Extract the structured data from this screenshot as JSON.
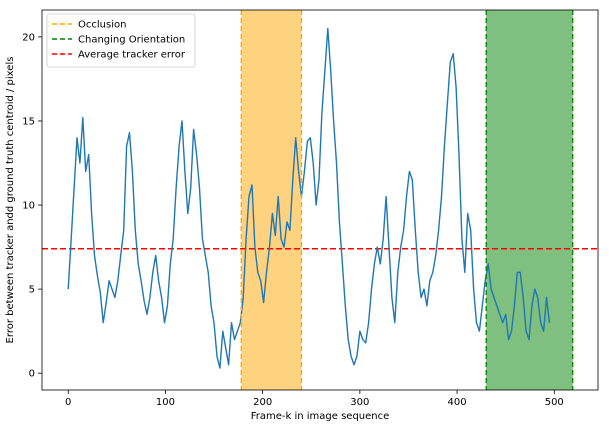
{
  "chart_data": {
    "type": "line",
    "title": "",
    "xlabel": "Frame-k in image sequence",
    "ylabel": "Error between tracker andd ground truth centroid / pixels",
    "xlim": [
      -27,
      545
    ],
    "ylim": [
      -1.0,
      21.6
    ],
    "x_ticks": [
      0,
      100,
      200,
      300,
      400,
      500
    ],
    "y_ticks": [
      0,
      5,
      10,
      15,
      20
    ],
    "grid": false,
    "legend_position": "top-left",
    "legend": [
      {
        "label": "Occlusion",
        "color": "#ffa500",
        "style": "dashed"
      },
      {
        "label": "Changing Orientation",
        "color": "#008000",
        "style": "dashed"
      },
      {
        "label": "Average tracker error",
        "color": "#ff0000",
        "style": "dashed"
      }
    ],
    "regions": [
      {
        "name": "Occlusion",
        "x_start": 178,
        "x_end": 240,
        "fill": "#ffa500",
        "edge": "#ffa500"
      },
      {
        "name": "Changing Orientation",
        "x_start": 430,
        "x_end": 519,
        "fill": "#008000",
        "edge": "#008000"
      }
    ],
    "average_tracker_error": 7.4,
    "series": [
      {
        "color": "#1f77b4",
        "x_start": 0,
        "x_step": 3,
        "values": [
          5.0,
          8.0,
          11.0,
          14.0,
          12.5,
          15.2,
          12.0,
          13.0,
          9.5,
          7.0,
          5.8,
          4.8,
          3.0,
          4.2,
          5.5,
          5.0,
          4.5,
          5.5,
          7.0,
          8.5,
          13.5,
          14.3,
          12.0,
          8.5,
          6.5,
          5.5,
          4.3,
          3.5,
          4.5,
          6.0,
          7.0,
          5.5,
          4.5,
          3.0,
          4.0,
          6.5,
          8.0,
          11.0,
          13.5,
          15.0,
          12.0,
          9.5,
          11.0,
          14.5,
          13.0,
          11.0,
          8.0,
          7.0,
          6.0,
          4.0,
          3.0,
          1.0,
          0.3,
          2.5,
          1.5,
          0.5,
          3.0,
          2.0,
          2.5,
          3.0,
          4.5,
          8.0,
          10.5,
          11.2,
          7.5,
          6.0,
          5.5,
          4.2,
          6.0,
          7.5,
          9.5,
          8.2,
          10.5,
          8.0,
          7.5,
          9.0,
          8.5,
          11.5,
          14.0,
          12.0,
          10.5,
          12.0,
          13.8,
          14.0,
          12.5,
          10.0,
          11.5,
          15.5,
          18.0,
          20.5,
          18.0,
          15.0,
          12.5,
          9.0,
          6.5,
          4.0,
          2.0,
          1.0,
          0.5,
          1.0,
          2.5,
          2.0,
          1.8,
          3.0,
          5.0,
          6.5,
          7.5,
          6.5,
          8.0,
          10.5,
          7.5,
          4.5,
          3.0,
          6.0,
          7.5,
          8.5,
          10.5,
          12.0,
          11.5,
          8.5,
          6.0,
          4.5,
          5.0,
          4.0,
          5.5,
          6.0,
          7.0,
          8.5,
          10.5,
          13.5,
          16.0,
          18.5,
          19.0,
          17.0,
          13.0,
          8.0,
          6.0,
          9.5,
          8.5,
          5.0,
          3.0,
          2.5,
          4.0,
          5.5,
          6.5,
          5.0,
          4.5,
          4.0,
          3.5,
          3.0,
          3.5,
          2.0,
          2.5,
          4.0,
          6.0,
          6.0,
          4.5,
          2.5,
          2.0,
          4.0,
          5.0,
          4.5,
          3.0,
          2.5,
          4.5,
          3.0
        ]
      }
    ]
  }
}
